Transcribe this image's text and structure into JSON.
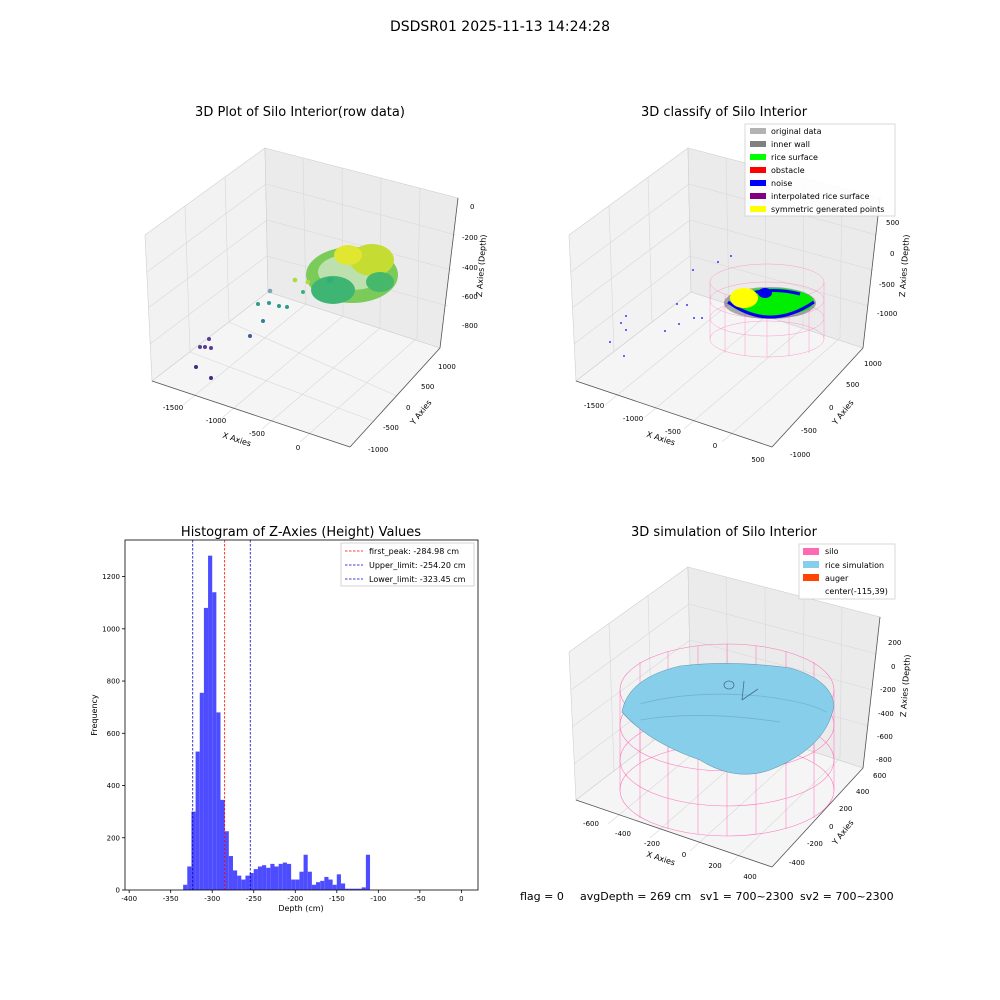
{
  "figure": {
    "suptitle": "DSDSR01 2025-11-13 14:24:28",
    "footer": {
      "flag": "flag = 0",
      "avg_depth": "avgDepth = 269 cm",
      "sv1": "sv1 = 700~2300",
      "sv2": "sv2 = 700~2300"
    }
  },
  "colors": {
    "hist_bar": "#4d4dff",
    "first_peak_line": "#ff0000",
    "limit_line": "#0000cc",
    "original_data": "#b3b3b3",
    "inner_wall": "#808080",
    "rice_surface": "#00ff00",
    "obstacle": "#ff0000",
    "noise": "#0000ff",
    "interpolated": "#800080",
    "symmetric": "#ffff00",
    "silo": "#ff69b4",
    "rice_simulation": "#87ceeb",
    "auger": "#ff4500"
  },
  "chart_data": [
    {
      "type": "scatter",
      "title": "3D Plot of Silo Interior(row data)",
      "xlabel": "X Axies",
      "ylabel": "Y Axies",
      "zlabel": "Z Axies (Depth)",
      "x_ticks": [
        "-1500",
        "-1000",
        "-500",
        "0"
      ],
      "y_ticks": [
        "-1000",
        "-500",
        "0",
        "500",
        "1000"
      ],
      "z_ticks": [
        "0",
        "-200",
        "-400",
        "-600",
        "-800"
      ],
      "grid": true
    },
    {
      "type": "scatter",
      "title": "3D classify of Silo Interior",
      "xlabel": "X Axies",
      "ylabel": "Y Axies",
      "zlabel": "Z Axies (Depth)",
      "x_ticks": [
        "-1500",
        "-1000",
        "-500",
        "0",
        "500"
      ],
      "y_ticks": [
        "-1000",
        "-500",
        "0",
        "500",
        "1000"
      ],
      "z_ticks": [
        "500",
        "0",
        "-500",
        "-1000"
      ],
      "legend": [
        {
          "label": "original data",
          "color": "#b3b3b3"
        },
        {
          "label": "inner wall",
          "color": "#808080"
        },
        {
          "label": "rice surface",
          "color": "#00ff00"
        },
        {
          "label": "obstacle",
          "color": "#ff0000"
        },
        {
          "label": "noise",
          "color": "#0000ff"
        },
        {
          "label": "interpolated rice surface",
          "color": "#800080"
        },
        {
          "label": "symmetric generated points",
          "color": "#ffff00"
        }
      ],
      "legend_position": "top-right",
      "grid": true
    },
    {
      "type": "bar",
      "title": "Histogram of Z-Axies (Height) Values",
      "xlabel": "Depth (cm)",
      "ylabel": "Frequency",
      "xlim": [
        -405,
        20
      ],
      "ylim": [
        0,
        1340
      ],
      "x_ticks": [
        -400,
        -350,
        -300,
        -250,
        -200,
        -150,
        -100,
        -50,
        0
      ],
      "y_ticks": [
        0,
        200,
        400,
        600,
        800,
        1000,
        1200
      ],
      "bin_width": 5,
      "bins": [
        [
          -335,
          20
        ],
        [
          -330,
          90
        ],
        [
          -325,
          300
        ],
        [
          -320,
          530
        ],
        [
          -315,
          755
        ],
        [
          -310,
          1080
        ],
        [
          -305,
          1280
        ],
        [
          -300,
          1140
        ],
        [
          -295,
          680
        ],
        [
          -290,
          345
        ],
        [
          -285,
          225
        ],
        [
          -280,
          130
        ],
        [
          -275,
          75
        ],
        [
          -270,
          55
        ],
        [
          -265,
          40
        ],
        [
          -260,
          55
        ],
        [
          -255,
          65
        ],
        [
          -250,
          80
        ],
        [
          -245,
          90
        ],
        [
          -240,
          95
        ],
        [
          -235,
          85
        ],
        [
          -230,
          100
        ],
        [
          -225,
          90
        ],
        [
          -220,
          100
        ],
        [
          -215,
          105
        ],
        [
          -210,
          100
        ],
        [
          -205,
          40
        ],
        [
          -200,
          40
        ],
        [
          -195,
          70
        ],
        [
          -190,
          135
        ],
        [
          -185,
          70
        ],
        [
          -180,
          20
        ],
        [
          -175,
          30
        ],
        [
          -170,
          35
        ],
        [
          -165,
          50
        ],
        [
          -160,
          40
        ],
        [
          -155,
          20
        ],
        [
          -150,
          60
        ],
        [
          -145,
          25
        ],
        [
          -140,
          5
        ],
        [
          -135,
          5
        ],
        [
          -130,
          5
        ],
        [
          -125,
          5
        ],
        [
          -120,
          10
        ],
        [
          -115,
          135
        ]
      ],
      "vlines": [
        {
          "x": -284.98,
          "label": "first_peak: -284.98 cm",
          "color": "#ff0000"
        },
        {
          "x": -254.2,
          "label": "Upper_limit: -254.20 cm",
          "color": "#0000cc"
        },
        {
          "x": -323.45,
          "label": "Lower_limit: -323.45 cm",
          "color": "#0000cc"
        }
      ],
      "legend_position": "top-right",
      "grid": false
    },
    {
      "type": "scatter",
      "title": "3D simulation of Silo Interior",
      "xlabel": "X Axies",
      "ylabel": "Y Axies",
      "zlabel": "Z Axies (Depth)",
      "x_ticks": [
        "-600",
        "-400",
        "-200",
        "0",
        "200",
        "400"
      ],
      "y_ticks": [
        "-400",
        "-200",
        "0",
        "200",
        "400",
        "600"
      ],
      "z_ticks": [
        "200",
        "0",
        "-200",
        "-400",
        "-600",
        "-800"
      ],
      "legend": [
        {
          "label": "silo",
          "color": "#ff69b4"
        },
        {
          "label": "rice simulation",
          "color": "#87ceeb"
        },
        {
          "label": "auger",
          "color": "#ff4500"
        },
        {
          "label": "center(-115,39)",
          "color": ""
        }
      ],
      "legend_position": "top-right",
      "grid": true
    }
  ]
}
